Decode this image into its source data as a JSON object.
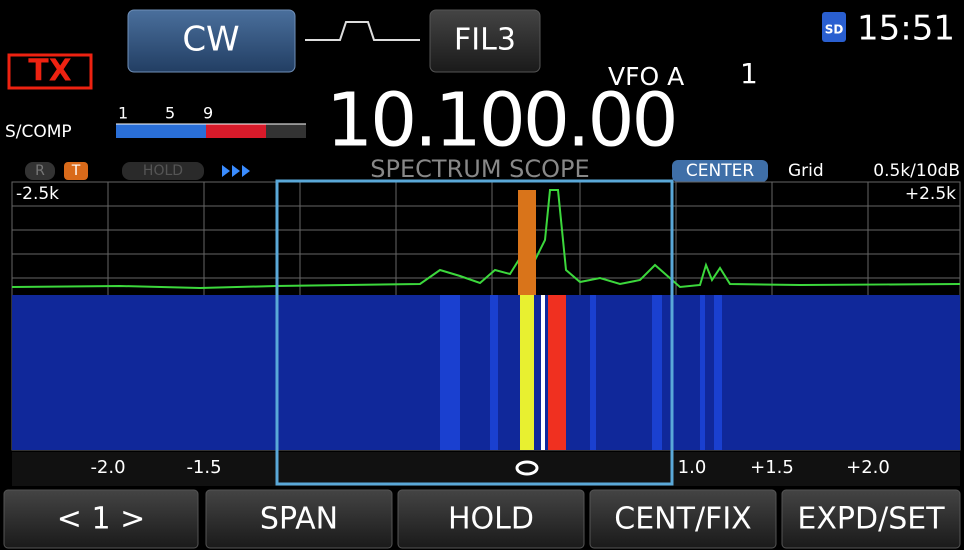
{
  "header": {
    "mode": "CW",
    "filter": "FIL3",
    "vfo": "VFO A",
    "vfo_number": "1",
    "sd": "SD",
    "time": "15:51",
    "tx": "TX"
  },
  "meter": {
    "label": "S/COMP",
    "scale": [
      "1",
      "5",
      "9"
    ]
  },
  "frequency": "10.100.00",
  "scope": {
    "indicators": [
      "R",
      "T",
      "HOLD"
    ],
    "title": "SPECTRUM SCOPE",
    "mode": "CENTER",
    "grid_label": "Grid",
    "grid_value": "0.5k/10dB",
    "left_edge": "-2.5k",
    "right_edge": "+2.5k",
    "scale": [
      "-2.0",
      "-1.5",
      "1.0",
      "+1.5",
      "+2.0"
    ]
  },
  "buttons": [
    "< 1 >",
    "SPAN",
    "HOLD",
    "CENT/FIX",
    "EXPD/SET"
  ]
}
